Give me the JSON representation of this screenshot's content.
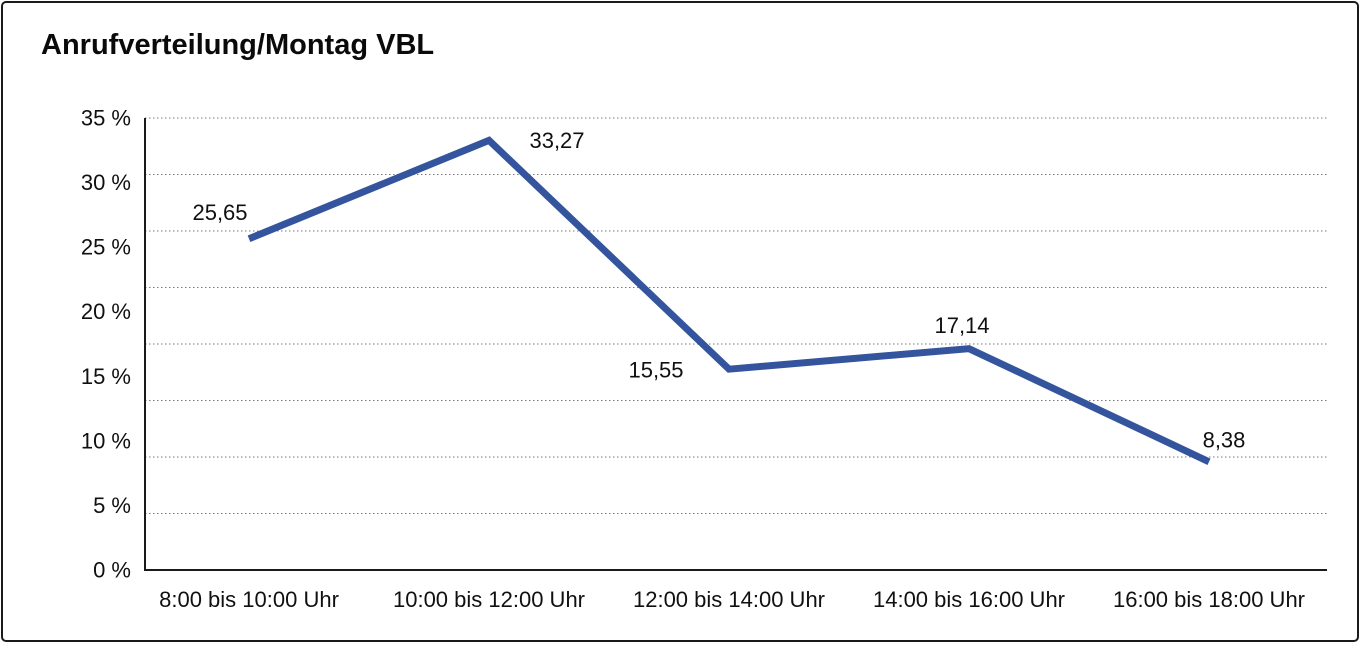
{
  "window": {
    "background_color": "#ffffff",
    "border_color": "#1a1a1a"
  },
  "chart_data": {
    "type": "line",
    "title": "Anrufverteilung/Montag VBL",
    "categories": [
      "8:00 bis 10:00 Uhr",
      "10:00 bis 12:00 Uhr",
      "12:00 bis 14:00 Uhr",
      "14:00 bis 16:00 Uhr",
      "16:00 bis 18:00 Uhr"
    ],
    "series": [
      {
        "name": "Anrufverteilung",
        "values": [
          25.65,
          33.27,
          15.55,
          17.14,
          8.38
        ],
        "value_labels": [
          "25,65",
          "33,27",
          "15,55",
          "17,14",
          "8,38"
        ]
      }
    ],
    "xlabel": "",
    "ylabel": "",
    "ylim": [
      0,
      35
    ],
    "y_tick_step": 5,
    "y_tick_labels": [
      "0 %",
      "5 %",
      "10 %",
      "15 %",
      "20 %",
      "25 %",
      "30 %",
      "35 %"
    ],
    "gridline_divisions": 8,
    "grid": "horizontal-dotted",
    "legend_position": "none",
    "colors": {
      "line": "#34559D",
      "axis": "#1a1a1a",
      "gridline": "#7a7a7a",
      "text": "#101010"
    }
  }
}
